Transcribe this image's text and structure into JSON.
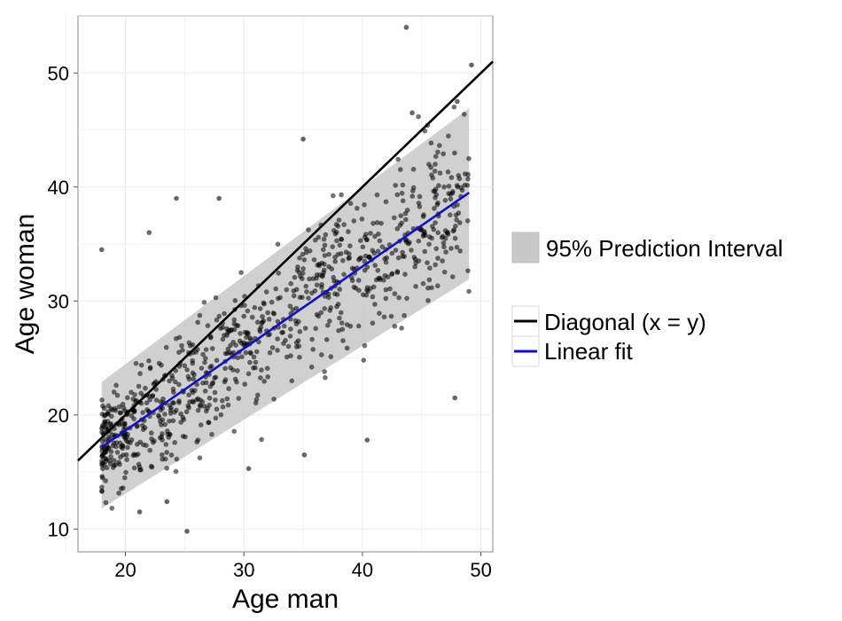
{
  "chart_data": {
    "type": "scatter",
    "xlabel": "Age man",
    "ylabel": "Age woman",
    "xlim": [
      16,
      51
    ],
    "ylim": [
      8,
      55
    ],
    "x_ticks": [
      20,
      30,
      40,
      50
    ],
    "y_ticks": [
      10,
      20,
      30,
      40,
      50
    ],
    "grid": true,
    "legend_placement": "right",
    "colors": {
      "points": "#000000",
      "diagonal": "#000000",
      "fit": "#1010c8",
      "band": "#c8c8c8"
    },
    "prediction_band": {
      "name": "95% Prediction Interval",
      "x": [
        18,
        49
      ],
      "lower": [
        11.8,
        31.9
      ],
      "upper": [
        22.9,
        46.9
      ]
    },
    "lines": [
      {
        "name": "Diagonal (x = y)",
        "x": [
          16,
          51
        ],
        "y": [
          16,
          51
        ]
      },
      {
        "name": "Linear fit",
        "x": [
          18,
          49
        ],
        "y": [
          17.2,
          39.5
        ]
      }
    ],
    "scatter_generation": {
      "n": 900,
      "x_min": 18,
      "x_max": 49,
      "intercept": 4.3,
      "slope": 0.72
    },
    "notable_points": [
      {
        "x": 43.7,
        "y": 54
      },
      {
        "x": 25.2,
        "y": 9.8
      },
      {
        "x": 18,
        "y": 34.5
      },
      {
        "x": 49.2,
        "y": 50.7
      },
      {
        "x": 40.4,
        "y": 17.8
      },
      {
        "x": 47.8,
        "y": 21.5
      },
      {
        "x": 35,
        "y": 44.2
      },
      {
        "x": 24.3,
        "y": 39
      },
      {
        "x": 21.2,
        "y": 11.5
      },
      {
        "x": 23.5,
        "y": 12.4
      },
      {
        "x": 30.4,
        "y": 15.3
      },
      {
        "x": 35.1,
        "y": 16.5
      },
      {
        "x": 22,
        "y": 36
      },
      {
        "x": 27.9,
        "y": 39
      },
      {
        "x": 44.2,
        "y": 46.5
      },
      {
        "x": 48,
        "y": 47.5
      }
    ]
  },
  "legend": {
    "band_label": "95% Prediction Interval",
    "diagonal_label": "Diagonal (x = y)",
    "fit_label": "Linear fit"
  }
}
